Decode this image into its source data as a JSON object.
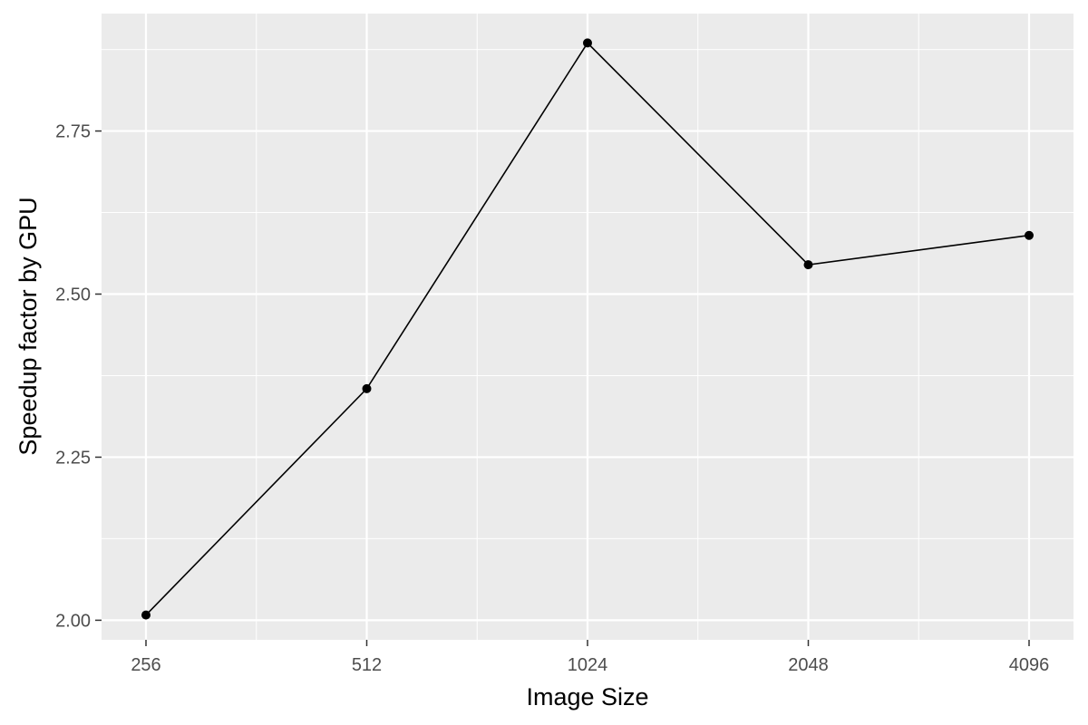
{
  "chart_data": {
    "type": "line",
    "xlabel": "Image Size",
    "ylabel": "Speedup factor by GPU",
    "categories": [
      "256",
      "512",
      "1024",
      "2048",
      "4096"
    ],
    "series": [
      {
        "values": [
          2.008,
          2.355,
          2.885,
          2.545,
          2.59
        ]
      }
    ],
    "ylim": [
      1.97,
      2.93
    ],
    "yticks": [
      2.0,
      2.25,
      2.5,
      2.75
    ],
    "ytick_labels": [
      "2.00",
      "2.25",
      "2.50",
      "2.75"
    ],
    "grid": true,
    "legend": "none",
    "colors": {
      "panel": "#ebebeb",
      "grid_major": "#ffffff",
      "line": "#000000",
      "point": "#000000",
      "tick": "#333333"
    }
  }
}
